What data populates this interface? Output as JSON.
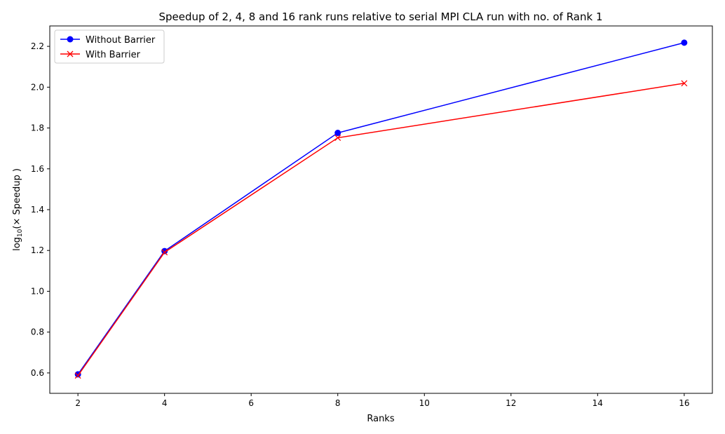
{
  "chart_data": {
    "type": "line",
    "title": "Speedup of 2, 4, 8 and 16 rank runs relative to serial MPI CLA run with no. of Rank 1",
    "xlabel": "Ranks",
    "ylabel_prefix": "log",
    "ylabel_sub": "10",
    "ylabel_suffix": "(× Speedup )",
    "xlim": [
      1.35,
      16.65
    ],
    "ylim": [
      0.5,
      2.3
    ],
    "xticks": [
      2,
      4,
      6,
      8,
      10,
      12,
      14,
      16
    ],
    "yticks": [
      0.6,
      0.8,
      1.0,
      1.2,
      1.4,
      1.6,
      1.8,
      2.0,
      2.2
    ],
    "grid": false,
    "legend_position": "top-left",
    "series": [
      {
        "name": "Without Barrier",
        "color": "#0000ff",
        "marker": "circle",
        "x": [
          2,
          4,
          8,
          16
        ],
        "values": [
          0.593,
          1.197,
          1.776,
          2.218
        ]
      },
      {
        "name": "With Barrier",
        "color": "#ff0000",
        "marker": "x",
        "x": [
          2,
          4,
          8,
          16
        ],
        "values": [
          0.587,
          1.191,
          1.752,
          2.019
        ]
      }
    ]
  }
}
